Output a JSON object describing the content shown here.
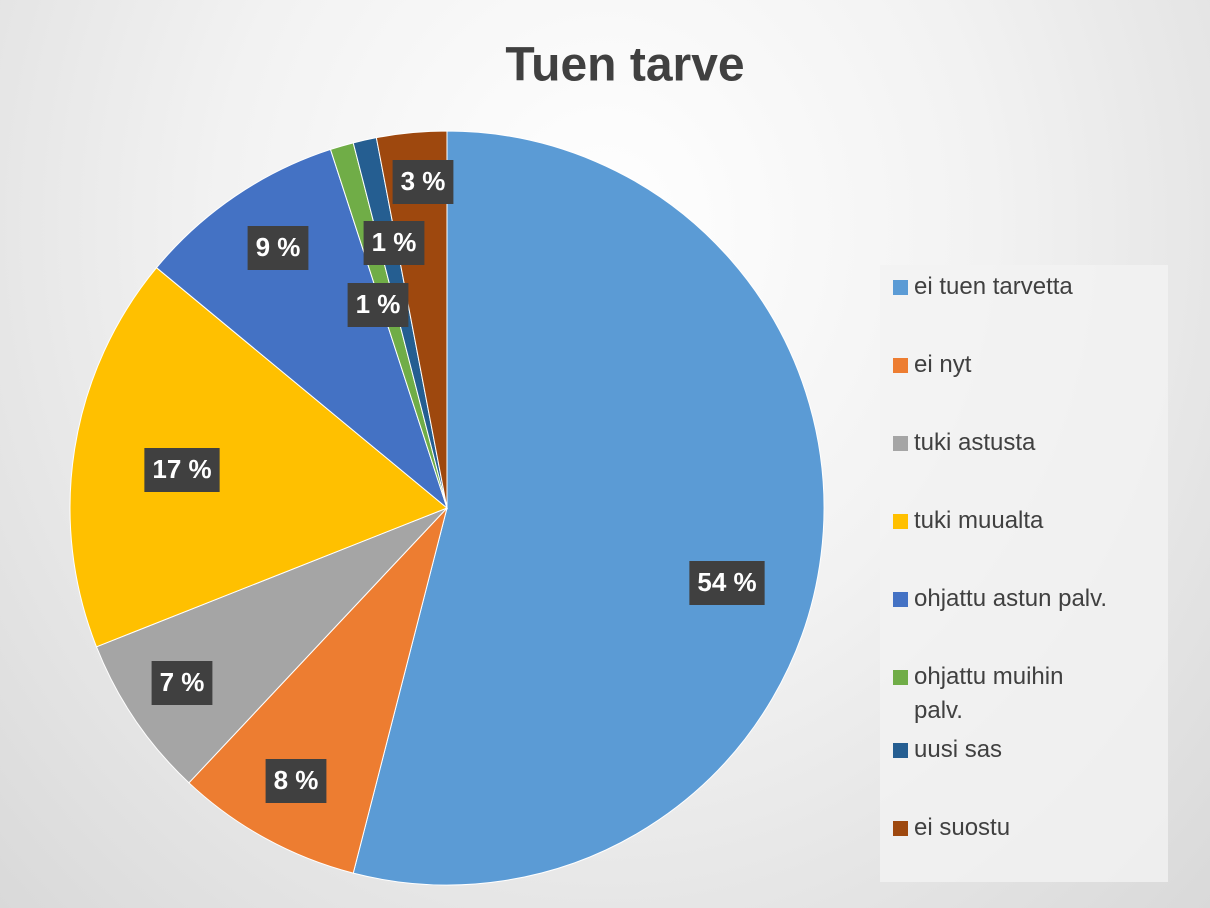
{
  "chart_data": {
    "type": "pie",
    "title": "Tuen tarve",
    "categories": [
      "ei tuen tarvetta",
      "ei nyt",
      "tuki astusta",
      "tuki muualta",
      "ohjattu astun palv.",
      "ohjattu muihin palv.",
      "uusi sas",
      "ei suostu"
    ],
    "values": [
      54,
      8,
      7,
      17,
      9,
      1,
      1,
      3
    ],
    "value_labels": [
      "54 %",
      "8 %",
      "7 %",
      "17 %",
      "9 %",
      "1 %",
      "1 %",
      "3 %"
    ],
    "colors": [
      "#5b9bd5",
      "#ed7d31",
      "#a5a5a5",
      "#ffc000",
      "#4472c4",
      "#70ad47",
      "#255e91",
      "#9e480e"
    ],
    "legend": "right"
  }
}
